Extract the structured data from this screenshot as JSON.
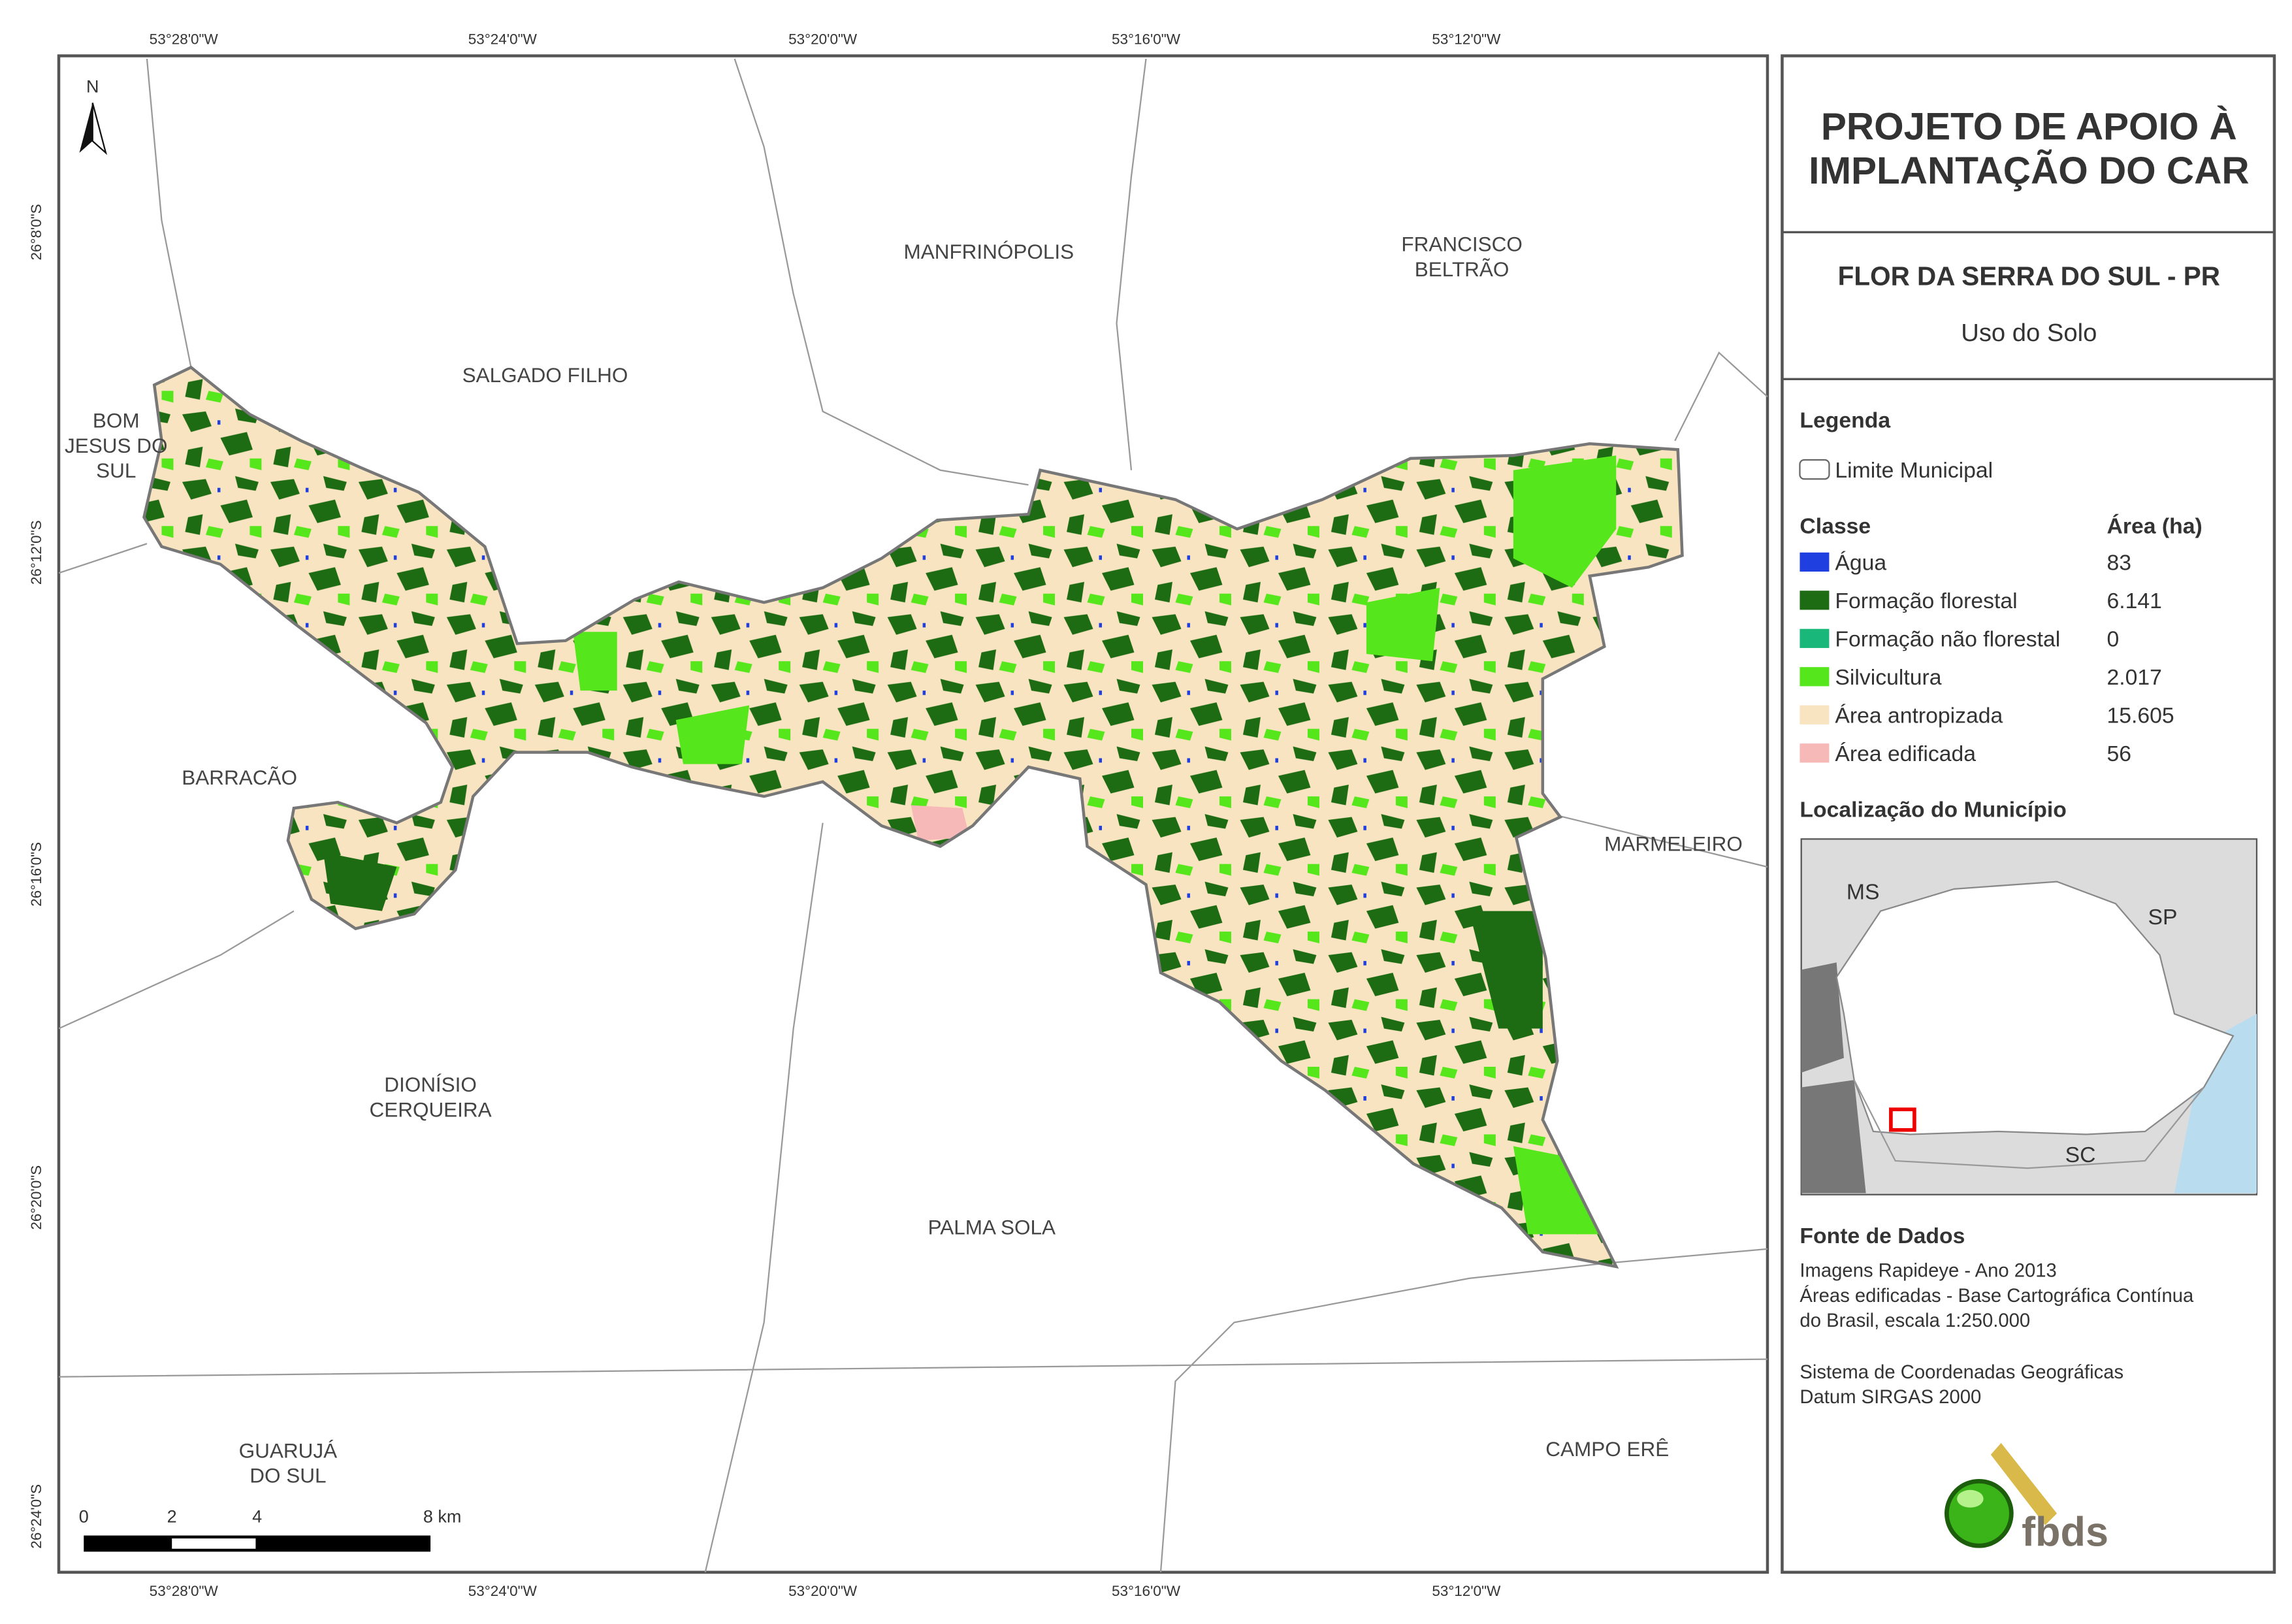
{
  "map": {
    "north": "N",
    "lon_labels": [
      "53°28'0\"W",
      "53°24'0\"W",
      "53°20'0\"W",
      "53°16'0\"W",
      "53°12'0\"W"
    ],
    "lat_labels": [
      "26°8'0\"S",
      "26°12'0\"S",
      "26°16'0\"S",
      "26°20'0\"S",
      "26°24'0\"S"
    ],
    "places": {
      "manfrinopolis": "MANFRINÓPOLIS",
      "francisco_beltrao": [
        "FRANCISCO",
        "BELTRÃO"
      ],
      "salgado_filho": "SALGADO FILHO",
      "bom_jesus_do_sul": [
        "BOM",
        "JESUS DO",
        "SUL"
      ],
      "barracao": "BARRACÃO",
      "marmeleiro": "MARMELEIRO",
      "dionisio_cerqueira": [
        "DIONÍSIO",
        "CERQUEIRA"
      ],
      "palma_sola": "PALMA SOLA",
      "guaruja_do_sul": [
        "GUARUJÁ",
        "DO SUL"
      ],
      "campo_ere": "CAMPO ERÊ"
    },
    "scale_labels": [
      "0",
      "2",
      "4",
      "8 km"
    ]
  },
  "panel": {
    "title": [
      "PROJETO DE APOIO À",
      "IMPLANTAÇÃO DO CAR"
    ],
    "subtitle": "FLOR DA SERRA DO SUL - PR",
    "theme": "Uso do Solo",
    "legend_title": "Legenda",
    "boundary": "Limite Municipal",
    "class_header": "Classe",
    "area_header": "Área (ha)",
    "classes": [
      {
        "name": "Água",
        "area": "83",
        "color": "#1f3fe0"
      },
      {
        "name": "Formação florestal",
        "area": "6.141",
        "color": "#1d6b12"
      },
      {
        "name": "Formação não florestal",
        "area": "0",
        "color": "#19b87a"
      },
      {
        "name": "Silvicultura",
        "area": "2.017",
        "color": "#55e61b"
      },
      {
        "name": "Área antropizada",
        "area": "15.605",
        "color": "#f8e4c0"
      },
      {
        "name": "Área edificada",
        "area": "56",
        "color": "#f7b8b8"
      }
    ],
    "location_title": "Localização do Município",
    "inset_labels": [
      "MS",
      "SP",
      "SC"
    ],
    "sources_title": "Fonte de Dados",
    "sources": [
      "Imagens Rapideye - Ano 2013",
      "Áreas edificadas - Base Cartográfica Contínua",
      "do Brasil, escala 1:250.000"
    ],
    "crs": [
      "Sistema de Coordenadas Geográficas",
      "Datum SIRGAS 2000"
    ],
    "logo": "fbds"
  }
}
